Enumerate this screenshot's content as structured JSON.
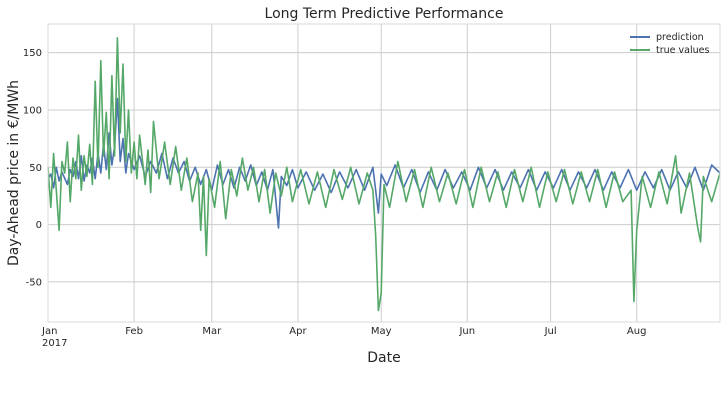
{
  "chart_data": {
    "type": "line",
    "title": "Long Term Predictive Performance",
    "xlabel": "Date",
    "ylabel": "Day-Ahead price in €/MWh",
    "x_range": [
      "2017-01-01",
      "2017-08-31"
    ],
    "ylim": [
      -85,
      175
    ],
    "y_ticks": [
      -50,
      0,
      50,
      100,
      150
    ],
    "x_ticks": [
      {
        "date": "2017-01-01",
        "label": "Jan",
        "sublabel": "2017"
      },
      {
        "date": "2017-02-01",
        "label": "Feb",
        "sublabel": ""
      },
      {
        "date": "2017-03-01",
        "label": "Mar",
        "sublabel": ""
      },
      {
        "date": "2017-04-01",
        "label": "Apr",
        "sublabel": ""
      },
      {
        "date": "2017-05-01",
        "label": "May",
        "sublabel": ""
      },
      {
        "date": "2017-06-01",
        "label": "Jun",
        "sublabel": ""
      },
      {
        "date": "2017-07-01",
        "label": "Jul",
        "sublabel": ""
      },
      {
        "date": "2017-08-01",
        "label": "Aug",
        "sublabel": ""
      }
    ],
    "grid": true,
    "legend_position": "top-right",
    "series": [
      {
        "name": "prediction",
        "color": "#4c72b0",
        "points": [
          [
            "2017-01-01",
            40
          ],
          [
            "2017-01-02",
            44
          ],
          [
            "2017-01-03",
            32
          ],
          [
            "2017-01-04",
            50
          ],
          [
            "2017-01-05",
            38
          ],
          [
            "2017-01-06",
            46
          ],
          [
            "2017-01-08",
            35
          ],
          [
            "2017-01-09",
            48
          ],
          [
            "2017-01-10",
            42
          ],
          [
            "2017-01-11",
            55
          ],
          [
            "2017-01-12",
            40
          ],
          [
            "2017-01-13",
            60
          ],
          [
            "2017-01-14",
            38
          ],
          [
            "2017-01-15",
            52
          ],
          [
            "2017-01-16",
            45
          ],
          [
            "2017-01-17",
            58
          ],
          [
            "2017-01-18",
            40
          ],
          [
            "2017-01-19",
            62
          ],
          [
            "2017-01-20",
            45
          ],
          [
            "2017-01-21",
            70
          ],
          [
            "2017-01-22",
            48
          ],
          [
            "2017-01-23",
            80
          ],
          [
            "2017-01-24",
            52
          ],
          [
            "2017-01-25",
            68
          ],
          [
            "2017-01-26",
            110
          ],
          [
            "2017-01-27",
            55
          ],
          [
            "2017-01-28",
            75
          ],
          [
            "2017-01-29",
            45
          ],
          [
            "2017-01-30",
            62
          ],
          [
            "2017-02-01",
            48
          ],
          [
            "2017-02-03",
            60
          ],
          [
            "2017-02-05",
            42
          ],
          [
            "2017-02-07",
            55
          ],
          [
            "2017-02-09",
            45
          ],
          [
            "2017-02-11",
            62
          ],
          [
            "2017-02-13",
            40
          ],
          [
            "2017-02-15",
            58
          ],
          [
            "2017-02-17",
            45
          ],
          [
            "2017-02-19",
            55
          ],
          [
            "2017-02-21",
            38
          ],
          [
            "2017-02-23",
            50
          ],
          [
            "2017-02-25",
            35
          ],
          [
            "2017-02-27",
            48
          ],
          [
            "2017-03-01",
            30
          ],
          [
            "2017-03-03",
            52
          ],
          [
            "2017-03-05",
            35
          ],
          [
            "2017-03-07",
            48
          ],
          [
            "2017-03-09",
            32
          ],
          [
            "2017-03-11",
            50
          ],
          [
            "2017-03-13",
            38
          ],
          [
            "2017-03-15",
            52
          ],
          [
            "2017-03-17",
            34
          ],
          [
            "2017-03-19",
            46
          ],
          [
            "2017-03-21",
            30
          ],
          [
            "2017-03-23",
            48
          ],
          [
            "2017-03-25",
            -3
          ],
          [
            "2017-03-26",
            42
          ],
          [
            "2017-03-28",
            34
          ],
          [
            "2017-03-30",
            48
          ],
          [
            "2017-04-01",
            32
          ],
          [
            "2017-04-04",
            46
          ],
          [
            "2017-04-07",
            30
          ],
          [
            "2017-04-10",
            44
          ],
          [
            "2017-04-13",
            28
          ],
          [
            "2017-04-16",
            46
          ],
          [
            "2017-04-19",
            32
          ],
          [
            "2017-04-22",
            48
          ],
          [
            "2017-04-25",
            30
          ],
          [
            "2017-04-28",
            50
          ],
          [
            "2017-04-30",
            10
          ],
          [
            "2017-05-01",
            44
          ],
          [
            "2017-05-03",
            34
          ],
          [
            "2017-05-06",
            52
          ],
          [
            "2017-05-09",
            32
          ],
          [
            "2017-05-12",
            48
          ],
          [
            "2017-05-15",
            28
          ],
          [
            "2017-05-18",
            46
          ],
          [
            "2017-05-21",
            30
          ],
          [
            "2017-05-24",
            48
          ],
          [
            "2017-05-27",
            32
          ],
          [
            "2017-05-30",
            46
          ],
          [
            "2017-06-02",
            30
          ],
          [
            "2017-06-05",
            50
          ],
          [
            "2017-06-08",
            32
          ],
          [
            "2017-06-11",
            48
          ],
          [
            "2017-06-14",
            30
          ],
          [
            "2017-06-17",
            46
          ],
          [
            "2017-06-20",
            32
          ],
          [
            "2017-06-23",
            48
          ],
          [
            "2017-06-26",
            30
          ],
          [
            "2017-06-29",
            46
          ],
          [
            "2017-07-02",
            32
          ],
          [
            "2017-07-05",
            48
          ],
          [
            "2017-07-08",
            30
          ],
          [
            "2017-07-11",
            46
          ],
          [
            "2017-07-14",
            32
          ],
          [
            "2017-07-17",
            48
          ],
          [
            "2017-07-20",
            30
          ],
          [
            "2017-07-23",
            46
          ],
          [
            "2017-07-26",
            32
          ],
          [
            "2017-07-29",
            48
          ],
          [
            "2017-08-01",
            30
          ],
          [
            "2017-08-04",
            46
          ],
          [
            "2017-08-07",
            32
          ],
          [
            "2017-08-10",
            48
          ],
          [
            "2017-08-13",
            30
          ],
          [
            "2017-08-16",
            46
          ],
          [
            "2017-08-19",
            32
          ],
          [
            "2017-08-22",
            50
          ],
          [
            "2017-08-25",
            30
          ],
          [
            "2017-08-28",
            52
          ],
          [
            "2017-08-31",
            45
          ]
        ]
      },
      {
        "name": "true values",
        "color": "#55a868",
        "points": [
          [
            "2017-01-01",
            50
          ],
          [
            "2017-01-02",
            15
          ],
          [
            "2017-01-03",
            62
          ],
          [
            "2017-01-04",
            30
          ],
          [
            "2017-01-05",
            -5
          ],
          [
            "2017-01-06",
            55
          ],
          [
            "2017-01-07",
            45
          ],
          [
            "2017-01-08",
            72
          ],
          [
            "2017-01-09",
            20
          ],
          [
            "2017-01-10",
            58
          ],
          [
            "2017-01-11",
            40
          ],
          [
            "2017-01-12",
            78
          ],
          [
            "2017-01-13",
            30
          ],
          [
            "2017-01-14",
            60
          ],
          [
            "2017-01-15",
            42
          ],
          [
            "2017-01-16",
            70
          ],
          [
            "2017-01-17",
            35
          ],
          [
            "2017-01-18",
            125
          ],
          [
            "2017-01-19",
            50
          ],
          [
            "2017-01-20",
            143
          ],
          [
            "2017-01-21",
            60
          ],
          [
            "2017-01-22",
            98
          ],
          [
            "2017-01-23",
            40
          ],
          [
            "2017-01-24",
            130
          ],
          [
            "2017-01-25",
            60
          ],
          [
            "2017-01-26",
            163
          ],
          [
            "2017-01-27",
            80
          ],
          [
            "2017-01-28",
            140
          ],
          [
            "2017-01-29",
            55
          ],
          [
            "2017-01-30",
            100
          ],
          [
            "2017-01-31",
            45
          ],
          [
            "2017-02-01",
            72
          ],
          [
            "2017-02-02",
            40
          ],
          [
            "2017-02-03",
            78
          ],
          [
            "2017-02-05",
            35
          ],
          [
            "2017-02-06",
            65
          ],
          [
            "2017-02-07",
            28
          ],
          [
            "2017-02-08",
            90
          ],
          [
            "2017-02-10",
            40
          ],
          [
            "2017-02-12",
            72
          ],
          [
            "2017-02-14",
            35
          ],
          [
            "2017-02-16",
            68
          ],
          [
            "2017-02-18",
            30
          ],
          [
            "2017-02-20",
            58
          ],
          [
            "2017-02-22",
            20
          ],
          [
            "2017-02-24",
            45
          ],
          [
            "2017-02-25",
            -5
          ],
          [
            "2017-02-26",
            42
          ],
          [
            "2017-02-27",
            -27
          ],
          [
            "2017-02-28",
            40
          ],
          [
            "2017-03-02",
            15
          ],
          [
            "2017-03-04",
            55
          ],
          [
            "2017-03-06",
            5
          ],
          [
            "2017-03-08",
            48
          ],
          [
            "2017-03-10",
            25
          ],
          [
            "2017-03-12",
            58
          ],
          [
            "2017-03-14",
            30
          ],
          [
            "2017-03-16",
            50
          ],
          [
            "2017-03-18",
            20
          ],
          [
            "2017-03-20",
            48
          ],
          [
            "2017-03-22",
            10
          ],
          [
            "2017-03-24",
            45
          ],
          [
            "2017-03-26",
            25
          ],
          [
            "2017-03-28",
            50
          ],
          [
            "2017-03-30",
            20
          ],
          [
            "2017-04-02",
            48
          ],
          [
            "2017-04-05",
            18
          ],
          [
            "2017-04-08",
            46
          ],
          [
            "2017-04-11",
            15
          ],
          [
            "2017-04-14",
            48
          ],
          [
            "2017-04-17",
            22
          ],
          [
            "2017-04-20",
            50
          ],
          [
            "2017-04-23",
            18
          ],
          [
            "2017-04-26",
            45
          ],
          [
            "2017-04-28",
            30
          ],
          [
            "2017-04-29",
            -10
          ],
          [
            "2017-04-30",
            -75
          ],
          [
            "2017-05-01",
            -60
          ],
          [
            "2017-05-02",
            35
          ],
          [
            "2017-05-04",
            15
          ],
          [
            "2017-05-07",
            55
          ],
          [
            "2017-05-10",
            20
          ],
          [
            "2017-05-13",
            48
          ],
          [
            "2017-05-16",
            15
          ],
          [
            "2017-05-19",
            50
          ],
          [
            "2017-05-22",
            20
          ],
          [
            "2017-05-25",
            45
          ],
          [
            "2017-05-28",
            18
          ],
          [
            "2017-05-31",
            48
          ],
          [
            "2017-06-03",
            15
          ],
          [
            "2017-06-06",
            50
          ],
          [
            "2017-06-09",
            20
          ],
          [
            "2017-06-12",
            46
          ],
          [
            "2017-06-15",
            15
          ],
          [
            "2017-06-18",
            48
          ],
          [
            "2017-06-21",
            20
          ],
          [
            "2017-06-24",
            50
          ],
          [
            "2017-06-27",
            15
          ],
          [
            "2017-06-30",
            46
          ],
          [
            "2017-07-03",
            20
          ],
          [
            "2017-07-06",
            48
          ],
          [
            "2017-07-09",
            18
          ],
          [
            "2017-07-12",
            46
          ],
          [
            "2017-07-15",
            20
          ],
          [
            "2017-07-18",
            48
          ],
          [
            "2017-07-21",
            15
          ],
          [
            "2017-07-24",
            46
          ],
          [
            "2017-07-27",
            20
          ],
          [
            "2017-07-30",
            30
          ],
          [
            "2017-07-31",
            -67
          ],
          [
            "2017-08-01",
            -5
          ],
          [
            "2017-08-03",
            42
          ],
          [
            "2017-08-06",
            15
          ],
          [
            "2017-08-09",
            46
          ],
          [
            "2017-08-12",
            18
          ],
          [
            "2017-08-15",
            60
          ],
          [
            "2017-08-17",
            10
          ],
          [
            "2017-08-20",
            45
          ],
          [
            "2017-08-23",
            -3
          ],
          [
            "2017-08-24",
            -15
          ],
          [
            "2017-08-25",
            42
          ],
          [
            "2017-08-28",
            20
          ],
          [
            "2017-08-31",
            45
          ]
        ]
      }
    ]
  }
}
